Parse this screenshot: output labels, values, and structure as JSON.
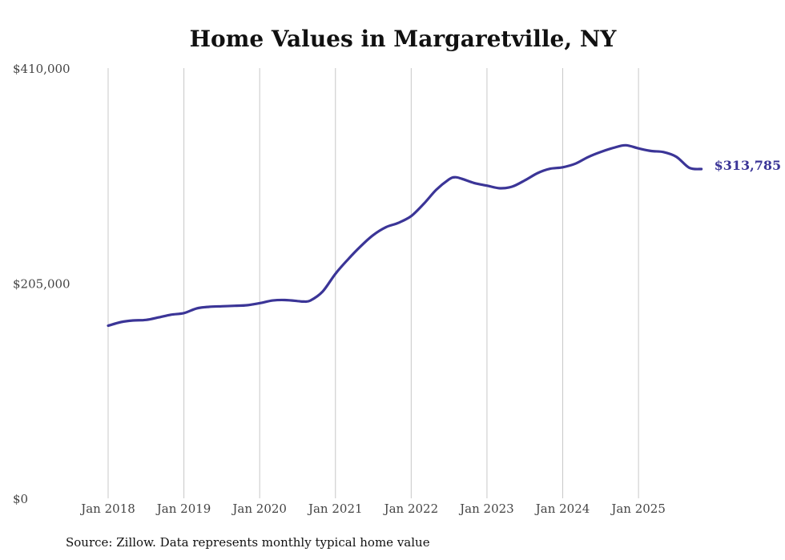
{
  "chart_data": {
    "type": "line",
    "title": "Home Values in Margaretville, NY",
    "xlabel": "",
    "ylabel": "",
    "ylim": [
      0,
      410000
    ],
    "y_ticks": [
      {
        "value": 0,
        "label": "$0"
      },
      {
        "value": 205000,
        "label": "$205,000"
      },
      {
        "value": 410000,
        "label": "$410,000"
      }
    ],
    "x_ticks": [
      {
        "value": 2018,
        "label": "Jan 2018"
      },
      {
        "value": 2019,
        "label": "Jan 2019"
      },
      {
        "value": 2020,
        "label": "Jan 2020"
      },
      {
        "value": 2021,
        "label": "Jan 2021"
      },
      {
        "value": 2022,
        "label": "Jan 2022"
      },
      {
        "value": 2023,
        "label": "Jan 2023"
      },
      {
        "value": 2024,
        "label": "Jan 2024"
      },
      {
        "value": 2025,
        "label": "Jan 2025"
      }
    ],
    "xlim": [
      2018,
      2025.9
    ],
    "grid": "vertical",
    "series": [
      {
        "name": "Typical home value",
        "color": "#3b3597",
        "end_label": "$313,785",
        "points": [
          [
            2018.0,
            164500
          ],
          [
            2018.17,
            168000
          ],
          [
            2018.33,
            169500
          ],
          [
            2018.5,
            170000
          ],
          [
            2018.67,
            172500
          ],
          [
            2018.83,
            175000
          ],
          [
            2019.0,
            176500
          ],
          [
            2019.17,
            181000
          ],
          [
            2019.33,
            182500
          ],
          [
            2019.5,
            183000
          ],
          [
            2019.67,
            183500
          ],
          [
            2019.83,
            184000
          ],
          [
            2020.0,
            186000
          ],
          [
            2020.17,
            188500
          ],
          [
            2020.33,
            189000
          ],
          [
            2020.5,
            188000
          ],
          [
            2020.58,
            187500
          ],
          [
            2020.67,
            188500
          ],
          [
            2020.83,
            197000
          ],
          [
            2021.0,
            214000
          ],
          [
            2021.17,
            228000
          ],
          [
            2021.33,
            240000
          ],
          [
            2021.5,
            251000
          ],
          [
            2021.67,
            258500
          ],
          [
            2021.83,
            262500
          ],
          [
            2022.0,
            269000
          ],
          [
            2022.17,
            281000
          ],
          [
            2022.33,
            294000
          ],
          [
            2022.5,
            304000
          ],
          [
            2022.58,
            306000
          ],
          [
            2022.67,
            304500
          ],
          [
            2022.83,
            300500
          ],
          [
            2023.0,
            298000
          ],
          [
            2023.17,
            295500
          ],
          [
            2023.33,
            297000
          ],
          [
            2023.5,
            303000
          ],
          [
            2023.67,
            310000
          ],
          [
            2023.83,
            314000
          ],
          [
            2024.0,
            315500
          ],
          [
            2024.17,
            319000
          ],
          [
            2024.33,
            325000
          ],
          [
            2024.5,
            330000
          ],
          [
            2024.67,
            334000
          ],
          [
            2024.83,
            336500
          ],
          [
            2025.0,
            333500
          ],
          [
            2025.17,
            331000
          ],
          [
            2025.33,
            330000
          ],
          [
            2025.5,
            325500
          ],
          [
            2025.67,
            315000
          ],
          [
            2025.83,
            313785
          ]
        ]
      }
    ]
  },
  "source_note": "Source: Zillow. Data represents monthly typical home value"
}
